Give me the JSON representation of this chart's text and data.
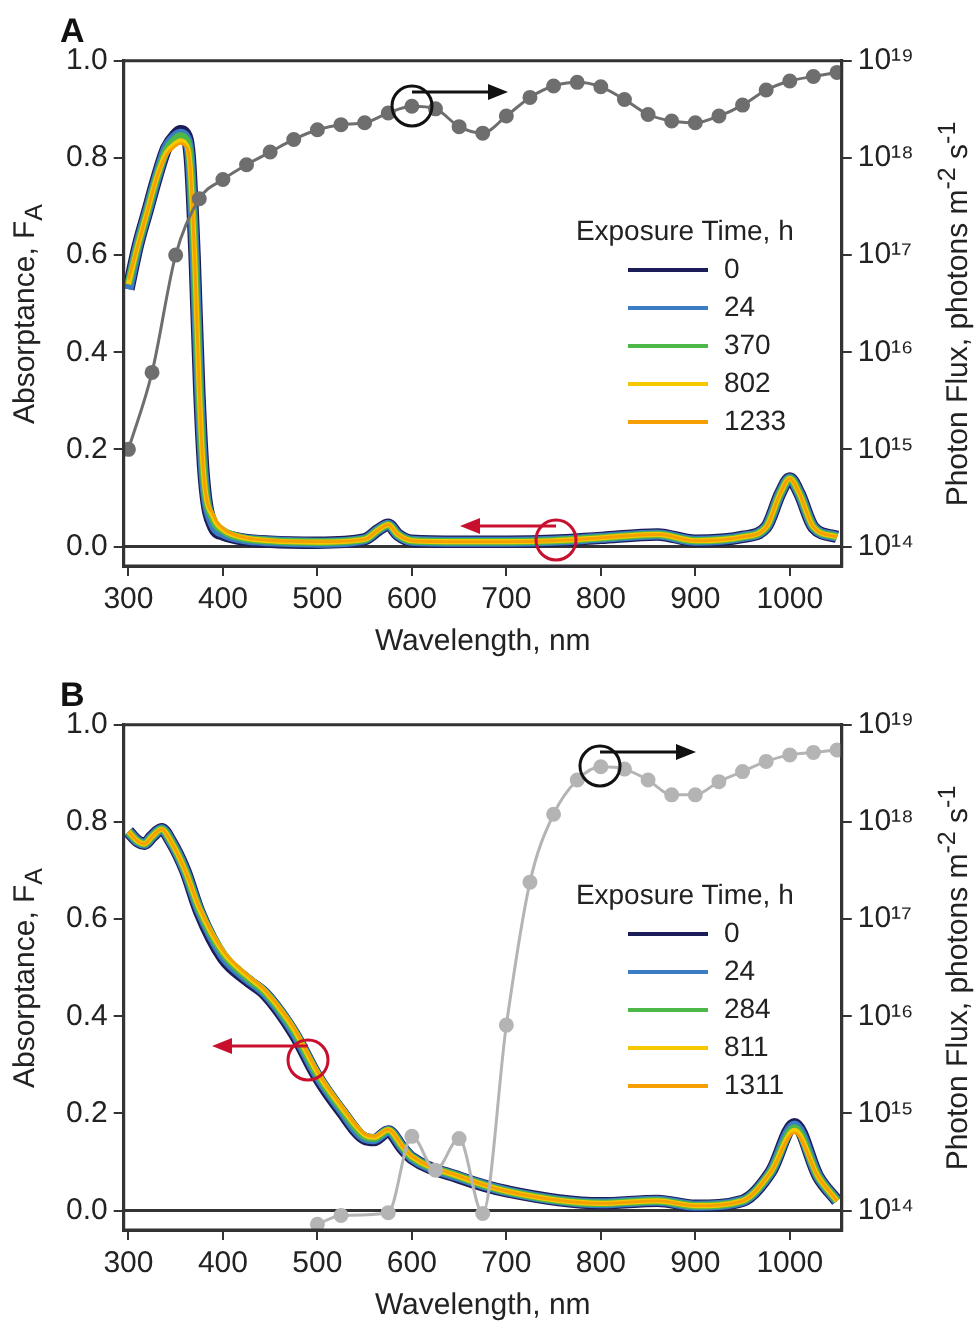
{
  "chart_data": [
    {
      "type": "line",
      "title": "A",
      "xlabel": "Wavelength, nm",
      "ylabel": "Absorptance, F$_{A}$",
      "y2label": "Photon Flux, photons m$^{-2}$ s$^{-1}$",
      "legend_title": "Exposure Time, h",
      "legend": "right",
      "log": "y2",
      "xlim": [
        295,
        1055
      ],
      "xticks": [
        300,
        400,
        500,
        600,
        700,
        800,
        900,
        1000
      ],
      "ylim": [
        -0.04,
        1.0
      ],
      "yticks": [
        {
          "value": 0,
          "label": "0.0"
        },
        {
          "value": 0.2,
          "label": "0.2"
        },
        {
          "value": 0.4,
          "label": "0.4"
        },
        {
          "value": 0.6,
          "label": "0.6"
        },
        {
          "value": 0.8,
          "label": "0.8"
        },
        {
          "value": 1,
          "label": "1.0"
        }
      ],
      "y2lim": [
        63000000000000.0,
        1e+19
      ],
      "y2ticks": [
        {
          "value": 100000000000000.0,
          "label": "10¹⁴"
        },
        {
          "value": 1000000000000000.0,
          "label": "10¹⁵"
        },
        {
          "value": 1e+16,
          "label": "10¹⁶"
        },
        {
          "value": 1e+17,
          "label": "10¹⁷"
        },
        {
          "value": 1e+18,
          "label": "10¹⁸"
        },
        {
          "value": 1e+19,
          "label": "10¹⁹"
        }
      ],
      "ref_lines": [
        {
          "axis": "y",
          "value": 0,
          "color": "#333333"
        }
      ],
      "x": [
        300,
        310,
        320,
        330,
        340,
        350,
        355,
        360,
        365,
        370,
        375,
        380,
        390,
        400,
        420,
        450,
        500,
        550,
        565,
        575,
        585,
        600,
        650,
        700,
        750,
        800,
        860,
        900,
        950,
        975,
        990,
        1000,
        1010,
        1025,
        1050
      ],
      "series": [
        {
          "name": "0",
          "color": "#1c1c5a",
          "marker": "none",
          "values": [
            0.53,
            0.62,
            0.69,
            0.76,
            0.82,
            0.848,
            0.855,
            0.85,
            0.8,
            0.6,
            0.32,
            0.14,
            0.04,
            0.025,
            0.015,
            0.01,
            0.008,
            0.015,
            0.035,
            0.045,
            0.025,
            0.012,
            0.01,
            0.01,
            0.012,
            0.018,
            0.025,
            0.012,
            0.02,
            0.04,
            0.11,
            0.14,
            0.11,
            0.04,
            0.02
          ]
        },
        {
          "name": "24",
          "color": "#3b7dc4",
          "marker": "none",
          "values": [
            0.53,
            0.62,
            0.69,
            0.76,
            0.82,
            0.845,
            0.85,
            0.845,
            0.8,
            0.6,
            0.32,
            0.14,
            0.045,
            0.028,
            0.016,
            0.011,
            0.008,
            0.015,
            0.035,
            0.045,
            0.025,
            0.012,
            0.01,
            0.01,
            0.012,
            0.018,
            0.025,
            0.012,
            0.02,
            0.04,
            0.11,
            0.14,
            0.11,
            0.04,
            0.02
          ]
        },
        {
          "name": "370",
          "color": "#4db848",
          "marker": "none",
          "values": [
            0.54,
            0.62,
            0.69,
            0.76,
            0.815,
            0.84,
            0.845,
            0.84,
            0.8,
            0.6,
            0.32,
            0.14,
            0.055,
            0.033,
            0.018,
            0.012,
            0.009,
            0.015,
            0.035,
            0.045,
            0.025,
            0.012,
            0.01,
            0.01,
            0.012,
            0.018,
            0.025,
            0.012,
            0.02,
            0.04,
            0.11,
            0.14,
            0.11,
            0.04,
            0.02
          ]
        },
        {
          "name": "802",
          "color": "#f5c800",
          "marker": "none",
          "values": [
            0.54,
            0.62,
            0.69,
            0.76,
            0.81,
            0.83,
            0.835,
            0.83,
            0.79,
            0.6,
            0.32,
            0.14,
            0.06,
            0.035,
            0.019,
            0.012,
            0.009,
            0.015,
            0.035,
            0.045,
            0.025,
            0.012,
            0.01,
            0.01,
            0.012,
            0.018,
            0.025,
            0.012,
            0.02,
            0.04,
            0.11,
            0.14,
            0.11,
            0.04,
            0.02
          ]
        },
        {
          "name": "1233",
          "color": "#f5a000",
          "marker": "none",
          "values": [
            0.55,
            0.62,
            0.69,
            0.76,
            0.805,
            0.825,
            0.83,
            0.825,
            0.79,
            0.6,
            0.32,
            0.14,
            0.065,
            0.038,
            0.02,
            0.013,
            0.01,
            0.015,
            0.035,
            0.045,
            0.025,
            0.012,
            0.01,
            0.01,
            0.012,
            0.018,
            0.025,
            0.012,
            0.02,
            0.04,
            0.11,
            0.14,
            0.11,
            0.04,
            0.02
          ]
        },
        {
          "color": "#6e6e6e",
          "marker": "circle",
          "axis": "y2",
          "x": [
            300,
            325,
            350,
            375,
            400,
            425,
            450,
            475,
            500,
            525,
            550,
            575,
            600,
            625,
            650,
            675,
            700,
            725,
            750,
            775,
            800,
            825,
            850,
            875,
            900,
            925,
            950,
            975,
            1000,
            1025,
            1050
          ],
          "values": [
            1000000000000000.0,
            6200000000000000.0,
            1e+17,
            3.8e+17,
            6e+17,
            8.5e+17,
            1.15e+18,
            1.55e+18,
            1.95e+18,
            2.2e+18,
            2.3e+18,
            2.9e+18,
            3.4e+18,
            3.2e+18,
            2.1e+18,
            1.8e+18,
            2.7e+18,
            4.2e+18,
            5.5e+18,
            6e+18,
            5.4e+18,
            4e+18,
            2.8e+18,
            2.4e+18,
            2.3e+18,
            2.7e+18,
            3.5e+18,
            5e+18,
            6.2e+18,
            6.9e+18,
            7.6e+18
          ]
        }
      ]
    },
    {
      "type": "line",
      "title": "B",
      "xlabel": "Wavelength, nm",
      "ylabel": "Absorptance, F$_{A}$",
      "y2label": "Photon Flux, photons m$^{-2}$ s$^{-1}$",
      "legend_title": "Exposure Time, h",
      "legend": "right",
      "log": "y2",
      "xlim": [
        295,
        1055
      ],
      "xticks": [
        300,
        400,
        500,
        600,
        700,
        800,
        900,
        1000
      ],
      "ylim": [
        -0.04,
        1.0
      ],
      "yticks": [
        {
          "value": 0,
          "label": "0.0"
        },
        {
          "value": 0.2,
          "label": "0.2"
        },
        {
          "value": 0.4,
          "label": "0.4"
        },
        {
          "value": 0.6,
          "label": "0.6"
        },
        {
          "value": 0.8,
          "label": "0.8"
        },
        {
          "value": 1,
          "label": "1.0"
        }
      ],
      "y2lim": [
        63000000000000.0,
        1e+19
      ],
      "y2ticks": [
        {
          "value": 100000000000000.0,
          "label": "10¹⁴"
        },
        {
          "value": 1000000000000000.0,
          "label": "10¹⁵"
        },
        {
          "value": 1e+16,
          "label": "10¹⁶"
        },
        {
          "value": 1e+17,
          "label": "10¹⁷"
        },
        {
          "value": 1e+18,
          "label": "10¹⁸"
        },
        {
          "value": 1e+19,
          "label": "10¹⁹"
        }
      ],
      "ref_lines": [
        {
          "axis": "y",
          "value": 0,
          "color": "#333333"
        }
      ],
      "x": [
        300,
        310,
        317,
        325,
        335,
        345,
        360,
        375,
        400,
        425,
        445,
        475,
        500,
        525,
        550,
        560,
        575,
        590,
        600,
        650,
        700,
        800,
        860,
        900,
        950,
        980,
        1005,
        1030,
        1050
      ],
      "series": [
        {
          "name": "0",
          "color": "#1c1c5a",
          "marker": "none",
          "values": [
            0.78,
            0.76,
            0.755,
            0.77,
            0.785,
            0.76,
            0.7,
            0.615,
            0.52,
            0.475,
            0.445,
            0.365,
            0.275,
            0.205,
            0.148,
            0.145,
            0.163,
            0.128,
            0.108,
            0.068,
            0.04,
            0.015,
            0.02,
            0.01,
            0.02,
            0.08,
            0.178,
            0.07,
            0.02
          ]
        },
        {
          "name": "24",
          "color": "#3b7dc4",
          "marker": "none",
          "values": [
            0.78,
            0.76,
            0.755,
            0.77,
            0.785,
            0.76,
            0.7,
            0.618,
            0.525,
            0.478,
            0.447,
            0.368,
            0.278,
            0.208,
            0.15,
            0.147,
            0.164,
            0.13,
            0.109,
            0.069,
            0.04,
            0.015,
            0.02,
            0.01,
            0.02,
            0.08,
            0.175,
            0.07,
            0.02
          ]
        },
        {
          "name": "284",
          "color": "#4db848",
          "marker": "none",
          "values": [
            0.78,
            0.76,
            0.755,
            0.77,
            0.785,
            0.76,
            0.7,
            0.62,
            0.53,
            0.481,
            0.449,
            0.371,
            0.281,
            0.211,
            0.153,
            0.149,
            0.165,
            0.131,
            0.11,
            0.07,
            0.04,
            0.015,
            0.02,
            0.01,
            0.02,
            0.08,
            0.17,
            0.07,
            0.02
          ]
        },
        {
          "name": "811",
          "color": "#f5c800",
          "marker": "none",
          "values": [
            0.78,
            0.76,
            0.755,
            0.77,
            0.785,
            0.76,
            0.7,
            0.622,
            0.533,
            0.484,
            0.451,
            0.374,
            0.284,
            0.214,
            0.156,
            0.151,
            0.166,
            0.132,
            0.111,
            0.07,
            0.04,
            0.015,
            0.02,
            0.01,
            0.02,
            0.08,
            0.165,
            0.07,
            0.02
          ]
        },
        {
          "name": "1311",
          "color": "#f5a000",
          "marker": "none",
          "values": [
            0.78,
            0.76,
            0.755,
            0.77,
            0.785,
            0.76,
            0.7,
            0.625,
            0.536,
            0.487,
            0.453,
            0.377,
            0.287,
            0.217,
            0.158,
            0.153,
            0.167,
            0.133,
            0.112,
            0.071,
            0.04,
            0.015,
            0.02,
            0.01,
            0.02,
            0.08,
            0.16,
            0.07,
            0.02
          ]
        },
        {
          "color": "#b4b4b4",
          "marker": "circle",
          "axis": "y2",
          "x": [
            500,
            525,
            575,
            600,
            625,
            650,
            675,
            700,
            725,
            750,
            775,
            800,
            825,
            850,
            875,
            900,
            925,
            950,
            975,
            1000,
            1025,
            1050
          ],
          "values": [
            72000000000000.0,
            89000000000000.0,
            95000000000000.0,
            580000000000000.0,
            260000000000000.0,
            550000000000000.0,
            93000000000000.0,
            8100000000000000.0,
            2.4e+17,
            1.2e+18,
            2.7e+18,
            3.7e+18,
            3.5e+18,
            2.7e+18,
            1.9e+18,
            1.9e+18,
            2.6e+18,
            3.3e+18,
            4.2e+18,
            4.9e+18,
            5.2e+18,
            5.5e+18
          ]
        }
      ]
    }
  ]
}
